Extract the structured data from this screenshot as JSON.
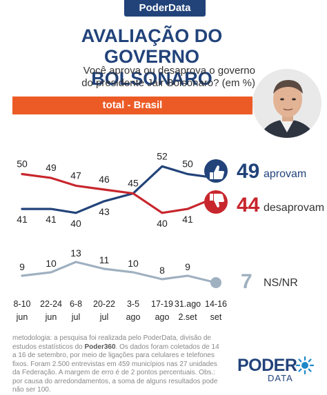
{
  "header": {
    "brand": "PoderData",
    "title_line1": "AVALIAÇÃO DO",
    "title_line2": "GOVERNO BOLSONARO",
    "subtitle_line1": "Você aprova ou desaprova o governo",
    "subtitle_line2": "do presidente Jair Bolsonaro?  (em %)",
    "banner": "total - Brasil"
  },
  "colors": {
    "brand_blue": "#22437a",
    "approve": "#22437a",
    "disapprove": "#c8262d",
    "neutral": "#9fb0c0",
    "banner": "#ec5b26"
  },
  "icons": {
    "approve": "thumbs-up-icon",
    "disapprove": "thumbs-down-icon"
  },
  "chart_data": {
    "type": "line",
    "categories": [
      [
        "8-10",
        "jun"
      ],
      [
        "22-24",
        "jun"
      ],
      [
        "6-8",
        "jul"
      ],
      [
        "20-22",
        "jul"
      ],
      [
        "3-5",
        "ago"
      ],
      [
        "17-19",
        "ago"
      ],
      [
        "31.ago",
        "2.set"
      ],
      [
        "14-16",
        "set"
      ]
    ],
    "series": [
      {
        "name": "aprovam",
        "key": "approve",
        "values": [
          41,
          41,
          40,
          43,
          45,
          52,
          50,
          49
        ]
      },
      {
        "name": "desaprovam",
        "key": "disapprove",
        "values": [
          50,
          49,
          47,
          46,
          45,
          40,
          41,
          44
        ]
      },
      {
        "name": "NS/NR",
        "key": "neutral",
        "values": [
          9,
          10,
          13,
          11,
          10,
          8,
          9,
          7
        ]
      }
    ]
  },
  "latest": {
    "approve_value": "49",
    "approve_label": "aprovam",
    "disapprove_value": "44",
    "disapprove_label": "desaprovam",
    "neutral_value": "7",
    "neutral_label": "NS/NR"
  },
  "footer": {
    "method_prefix": "metodologia: a pesquisa foi realizada pelo PoderData, divisão de estudos estatísticos do ",
    "method_brand": "Poder360",
    "method_suffix": ". Os dados foram coletados de 14 a 16 de setembro, por meio de ligações para celulares e telefones fixos. Foram 2.500 entrevistas em 459 municípios nas 27 unidades da Federação. A margem de erro é de 2 pontos percentuais. Obs.: por causa do arredondamentos, a soma de alguns resultados pode não ser 100.",
    "logo_word1": "PODER",
    "logo_word2": "DATA"
  }
}
